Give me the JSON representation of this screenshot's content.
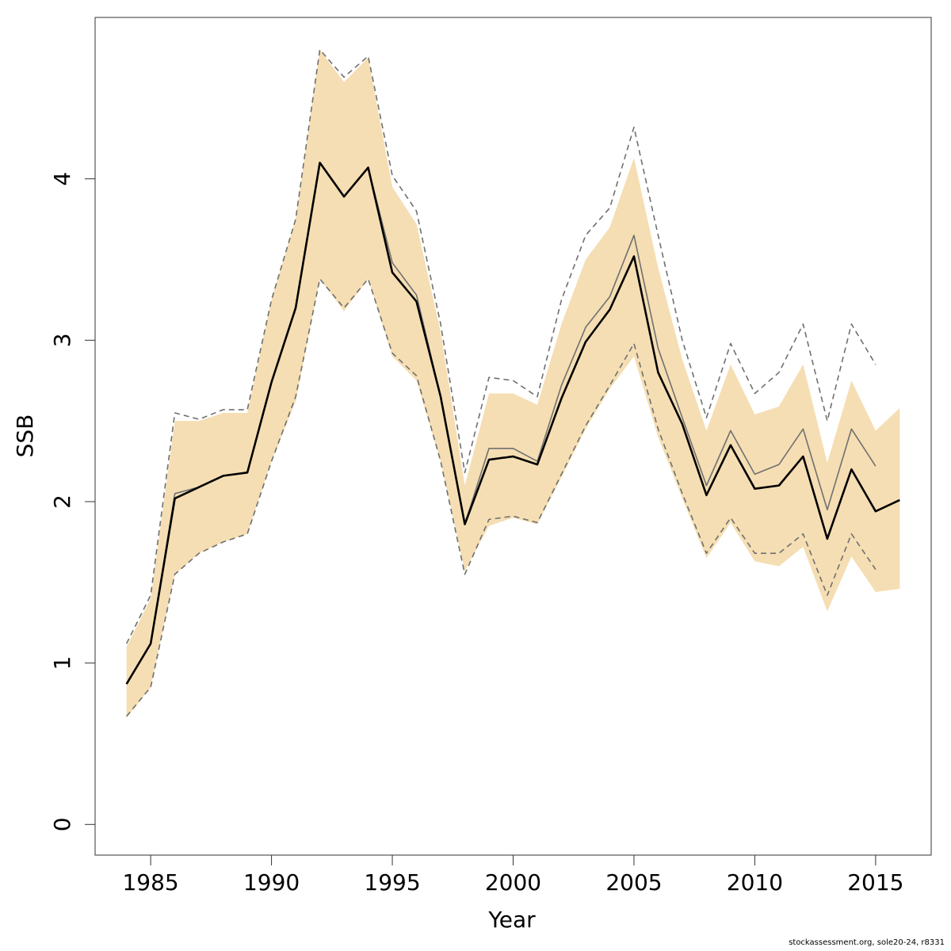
{
  "chart_data": {
    "type": "line",
    "xlabel": "Year",
    "ylabel": "SSB",
    "footnote": "stockassessment.org, sole20-24, r8331",
    "x": [
      1984,
      1985,
      1986,
      1987,
      1988,
      1989,
      1990,
      1991,
      1992,
      1993,
      1994,
      1995,
      1996,
      1997,
      1998,
      1999,
      2000,
      2001,
      2002,
      2003,
      2004,
      2005,
      2006,
      2007,
      2008,
      2009,
      2010,
      2011,
      2012,
      2013,
      2014,
      2015,
      2016
    ],
    "xlim": [
      1982.7,
      2017.3
    ],
    "ylim": [
      -0.19,
      5.0
    ],
    "xticks": [
      1985,
      1990,
      1995,
      2000,
      2005,
      2010,
      2015
    ],
    "yticks": [
      0,
      1,
      2,
      3,
      4
    ],
    "band": {
      "color": "#f5deb3",
      "upper": [
        1.1,
        1.4,
        2.5,
        2.5,
        2.55,
        2.55,
        3.25,
        3.75,
        4.8,
        4.6,
        4.75,
        3.95,
        3.72,
        3.05,
        2.1,
        2.67,
        2.67,
        2.6,
        3.1,
        3.5,
        3.7,
        4.13,
        3.45,
        2.88,
        2.44,
        2.85,
        2.54,
        2.59,
        2.85,
        2.24,
        2.75,
        2.44,
        2.58
      ],
      "lower": [
        0.66,
        0.85,
        1.55,
        1.68,
        1.75,
        1.8,
        2.25,
        2.62,
        3.38,
        3.18,
        3.38,
        2.9,
        2.75,
        2.25,
        1.57,
        1.85,
        1.9,
        1.86,
        2.15,
        2.45,
        2.7,
        2.9,
        2.4,
        2.02,
        1.65,
        1.87,
        1.63,
        1.6,
        1.72,
        1.32,
        1.66,
        1.44,
        1.46
      ]
    },
    "series": [
      {
        "color": "#000000",
        "linestyle": "solid",
        "values": [
          0.87,
          1.12,
          2.02,
          2.09,
          2.16,
          2.18,
          2.74,
          3.2,
          4.1,
          3.89,
          4.07,
          3.42,
          3.24,
          2.65,
          1.86,
          2.26,
          2.28,
          2.23,
          2.64,
          2.99,
          3.19,
          3.52,
          2.8,
          2.48,
          2.04,
          2.35,
          2.08,
          2.1,
          2.28,
          1.77,
          2.2,
          1.94,
          2.01
        ]
      },
      {
        "color": "#707070",
        "linestyle": "solid",
        "values": [
          0.87,
          1.12,
          2.05,
          2.09,
          2.16,
          2.18,
          2.74,
          3.2,
          4.1,
          3.89,
          4.07,
          3.48,
          3.28,
          2.65,
          1.86,
          2.33,
          2.33,
          2.25,
          2.72,
          3.08,
          3.27,
          3.65,
          2.95,
          2.52,
          2.1,
          2.44,
          2.17,
          2.23,
          2.45,
          1.95,
          2.45,
          2.22,
          null
        ]
      },
      {
        "color": "#707070",
        "linestyle": "dashed",
        "values": [
          1.12,
          1.42,
          2.55,
          2.51,
          2.57,
          2.57,
          3.25,
          3.75,
          4.8,
          4.63,
          4.76,
          4.02,
          3.8,
          3.1,
          2.18,
          2.77,
          2.75,
          2.65,
          3.25,
          3.65,
          3.82,
          4.32,
          3.65,
          3.0,
          2.52,
          2.98,
          2.67,
          2.8,
          3.1,
          2.5,
          3.1,
          2.85,
          null
        ]
      },
      {
        "color": "#707070",
        "linestyle": "dashed",
        "values": [
          0.67,
          0.85,
          1.55,
          1.68,
          1.75,
          1.8,
          2.25,
          2.65,
          3.38,
          3.2,
          3.38,
          2.92,
          2.78,
          2.25,
          1.55,
          1.89,
          1.91,
          1.87,
          2.17,
          2.47,
          2.72,
          2.98,
          2.45,
          2.05,
          1.68,
          1.9,
          1.68,
          1.68,
          1.8,
          1.42,
          1.8,
          1.58,
          null
        ]
      }
    ]
  }
}
